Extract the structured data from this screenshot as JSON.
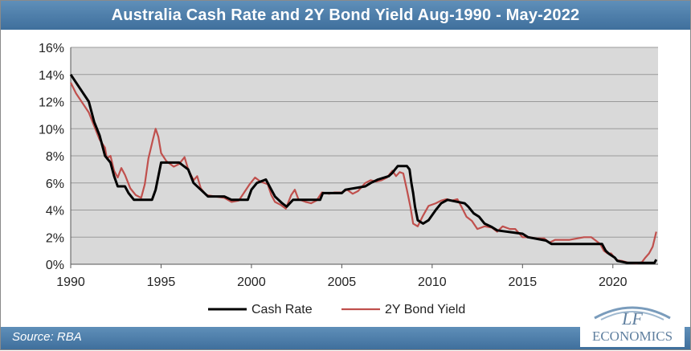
{
  "header": {
    "title": "Australia Cash Rate and 2Y Bond Yield Aug-1990 - May-2022"
  },
  "footer": {
    "source": "Source: RBA"
  },
  "logo": {
    "line1": "LF",
    "line2": "ECONOMICS"
  },
  "colors": {
    "header_bg": "#4a7aa6",
    "plot_bg": "#d9d9d9",
    "cash_rate": "#000000",
    "bond_yield": "#c0504d"
  },
  "chart_data": {
    "type": "line",
    "title": "Australia Cash Rate and 2Y Bond Yield Aug-1990 - May-2022",
    "xlabel": "",
    "ylabel": "",
    "xlim": [
      1990,
      2022.5
    ],
    "ylim": [
      0,
      16
    ],
    "x_ticks": [
      1990,
      1995,
      2000,
      2005,
      2010,
      2015,
      2020
    ],
    "y_ticks": [
      0,
      2,
      4,
      6,
      8,
      10,
      12,
      14,
      16
    ],
    "y_tick_labels": [
      "0%",
      "2%",
      "4%",
      "6%",
      "8%",
      "10%",
      "12%",
      "14%",
      "16%"
    ],
    "grid": "horizontal",
    "legend_position": "bottom",
    "series": [
      {
        "name": "Cash Rate",
        "color": "#000000",
        "points": [
          [
            1990.0,
            14.0
          ],
          [
            1990.5,
            13.0
          ],
          [
            1991.0,
            12.0
          ],
          [
            1991.3,
            10.5
          ],
          [
            1991.6,
            9.5
          ],
          [
            1991.9,
            8.0
          ],
          [
            1992.2,
            7.5
          ],
          [
            1992.4,
            6.5
          ],
          [
            1992.6,
            5.75
          ],
          [
            1993.0,
            5.75
          ],
          [
            1993.2,
            5.25
          ],
          [
            1993.5,
            4.75
          ],
          [
            1994.0,
            4.75
          ],
          [
            1994.5,
            4.75
          ],
          [
            1994.7,
            5.5
          ],
          [
            1994.85,
            6.5
          ],
          [
            1995.0,
            7.5
          ],
          [
            1996.0,
            7.5
          ],
          [
            1996.5,
            7.0
          ],
          [
            1996.8,
            6.0
          ],
          [
            1997.2,
            5.5
          ],
          [
            1997.6,
            5.0
          ],
          [
            1998.5,
            5.0
          ],
          [
            1998.9,
            4.75
          ],
          [
            1999.8,
            4.75
          ],
          [
            2000.0,
            5.5
          ],
          [
            2000.3,
            6.0
          ],
          [
            2000.8,
            6.25
          ],
          [
            2001.1,
            5.5
          ],
          [
            2001.3,
            5.0
          ],
          [
            2001.7,
            4.5
          ],
          [
            2001.95,
            4.25
          ],
          [
            2002.3,
            4.75
          ],
          [
            2003.8,
            4.75
          ],
          [
            2003.95,
            5.25
          ],
          [
            2005.0,
            5.25
          ],
          [
            2005.2,
            5.5
          ],
          [
            2006.3,
            5.75
          ],
          [
            2006.6,
            6.0
          ],
          [
            2007.0,
            6.25
          ],
          [
            2007.6,
            6.5
          ],
          [
            2007.8,
            6.75
          ],
          [
            2008.1,
            7.25
          ],
          [
            2008.6,
            7.25
          ],
          [
            2008.75,
            7.0
          ],
          [
            2008.85,
            6.0
          ],
          [
            2008.95,
            5.25
          ],
          [
            2009.05,
            4.25
          ],
          [
            2009.2,
            3.25
          ],
          [
            2009.5,
            3.0
          ],
          [
            2009.8,
            3.25
          ],
          [
            2010.2,
            4.0
          ],
          [
            2010.5,
            4.5
          ],
          [
            2010.85,
            4.75
          ],
          [
            2011.8,
            4.5
          ],
          [
            2012.0,
            4.25
          ],
          [
            2012.3,
            3.75
          ],
          [
            2012.6,
            3.5
          ],
          [
            2012.9,
            3.0
          ],
          [
            2013.3,
            2.75
          ],
          [
            2013.6,
            2.5
          ],
          [
            2015.0,
            2.25
          ],
          [
            2015.3,
            2.0
          ],
          [
            2016.3,
            1.75
          ],
          [
            2016.6,
            1.5
          ],
          [
            2019.4,
            1.5
          ],
          [
            2019.5,
            1.25
          ],
          [
            2019.6,
            1.0
          ],
          [
            2019.8,
            0.75
          ],
          [
            2020.1,
            0.5
          ],
          [
            2020.25,
            0.25
          ],
          [
            2020.8,
            0.1
          ],
          [
            2022.3,
            0.1
          ],
          [
            2022.4,
            0.35
          ]
        ]
      },
      {
        "name": "2Y Bond Yield",
        "color": "#c0504d",
        "points": [
          [
            1990.0,
            13.4
          ],
          [
            1990.3,
            12.6
          ],
          [
            1990.6,
            12.0
          ],
          [
            1991.0,
            11.2
          ],
          [
            1991.3,
            10.2
          ],
          [
            1991.6,
            9.2
          ],
          [
            1991.9,
            8.6
          ],
          [
            1992.0,
            7.8
          ],
          [
            1992.2,
            8.0
          ],
          [
            1992.4,
            6.9
          ],
          [
            1992.6,
            6.4
          ],
          [
            1992.8,
            7.1
          ],
          [
            1993.0,
            6.6
          ],
          [
            1993.3,
            5.6
          ],
          [
            1993.6,
            5.1
          ],
          [
            1993.9,
            4.9
          ],
          [
            1994.1,
            5.9
          ],
          [
            1994.3,
            7.8
          ],
          [
            1994.55,
            9.2
          ],
          [
            1994.7,
            10.0
          ],
          [
            1994.85,
            9.4
          ],
          [
            1995.0,
            8.2
          ],
          [
            1995.3,
            7.6
          ],
          [
            1995.7,
            7.2
          ],
          [
            1996.0,
            7.4
          ],
          [
            1996.3,
            7.9
          ],
          [
            1996.5,
            7.0
          ],
          [
            1996.8,
            6.2
          ],
          [
            1997.0,
            6.5
          ],
          [
            1997.2,
            5.6
          ],
          [
            1997.5,
            5.1
          ],
          [
            1998.0,
            5.0
          ],
          [
            1998.5,
            4.9
          ],
          [
            1998.9,
            4.6
          ],
          [
            1999.3,
            4.7
          ],
          [
            1999.6,
            5.3
          ],
          [
            1999.9,
            5.9
          ],
          [
            2000.2,
            6.4
          ],
          [
            2000.5,
            6.1
          ],
          [
            2000.9,
            5.9
          ],
          [
            2001.1,
            5.1
          ],
          [
            2001.3,
            4.6
          ],
          [
            2001.6,
            4.4
          ],
          [
            2001.9,
            4.1
          ],
          [
            2002.2,
            5.1
          ],
          [
            2002.4,
            5.5
          ],
          [
            2002.6,
            4.8
          ],
          [
            2003.0,
            4.6
          ],
          [
            2003.3,
            4.5
          ],
          [
            2003.6,
            4.7
          ],
          [
            2003.9,
            5.3
          ],
          [
            2004.3,
            5.2
          ],
          [
            2004.6,
            5.3
          ],
          [
            2005.0,
            5.3
          ],
          [
            2005.3,
            5.5
          ],
          [
            2005.6,
            5.2
          ],
          [
            2005.9,
            5.4
          ],
          [
            2006.3,
            6.0
          ],
          [
            2006.6,
            6.2
          ],
          [
            2006.9,
            6.1
          ],
          [
            2007.2,
            6.2
          ],
          [
            2007.5,
            6.4
          ],
          [
            2007.8,
            6.9
          ],
          [
            2008.0,
            6.5
          ],
          [
            2008.2,
            6.8
          ],
          [
            2008.4,
            6.7
          ],
          [
            2008.6,
            5.5
          ],
          [
            2008.8,
            4.2
          ],
          [
            2008.95,
            3.0
          ],
          [
            2009.2,
            2.8
          ],
          [
            2009.5,
            3.6
          ],
          [
            2009.8,
            4.3
          ],
          [
            2010.2,
            4.5
          ],
          [
            2010.5,
            4.7
          ],
          [
            2010.8,
            4.8
          ],
          [
            2011.1,
            4.7
          ],
          [
            2011.4,
            4.8
          ],
          [
            2011.6,
            4.3
          ],
          [
            2011.9,
            3.5
          ],
          [
            2012.2,
            3.2
          ],
          [
            2012.5,
            2.6
          ],
          [
            2012.9,
            2.8
          ],
          [
            2013.3,
            2.7
          ],
          [
            2013.6,
            2.4
          ],
          [
            2013.9,
            2.8
          ],
          [
            2014.3,
            2.6
          ],
          [
            2014.6,
            2.6
          ],
          [
            2015.0,
            2.0
          ],
          [
            2015.4,
            2.0
          ],
          [
            2015.8,
            1.9
          ],
          [
            2016.2,
            1.9
          ],
          [
            2016.5,
            1.6
          ],
          [
            2016.8,
            1.8
          ],
          [
            2017.2,
            1.8
          ],
          [
            2017.6,
            1.8
          ],
          [
            2018.0,
            1.9
          ],
          [
            2018.4,
            2.0
          ],
          [
            2018.8,
            2.0
          ],
          [
            2019.0,
            1.8
          ],
          [
            2019.3,
            1.5
          ],
          [
            2019.5,
            1.0
          ],
          [
            2019.7,
            0.8
          ],
          [
            2019.9,
            0.8
          ],
          [
            2020.2,
            0.3
          ],
          [
            2020.5,
            0.25
          ],
          [
            2020.9,
            0.1
          ],
          [
            2021.3,
            0.06
          ],
          [
            2021.6,
            0.15
          ],
          [
            2021.8,
            0.5
          ],
          [
            2022.0,
            0.8
          ],
          [
            2022.2,
            1.3
          ],
          [
            2022.4,
            2.4
          ]
        ]
      }
    ]
  }
}
